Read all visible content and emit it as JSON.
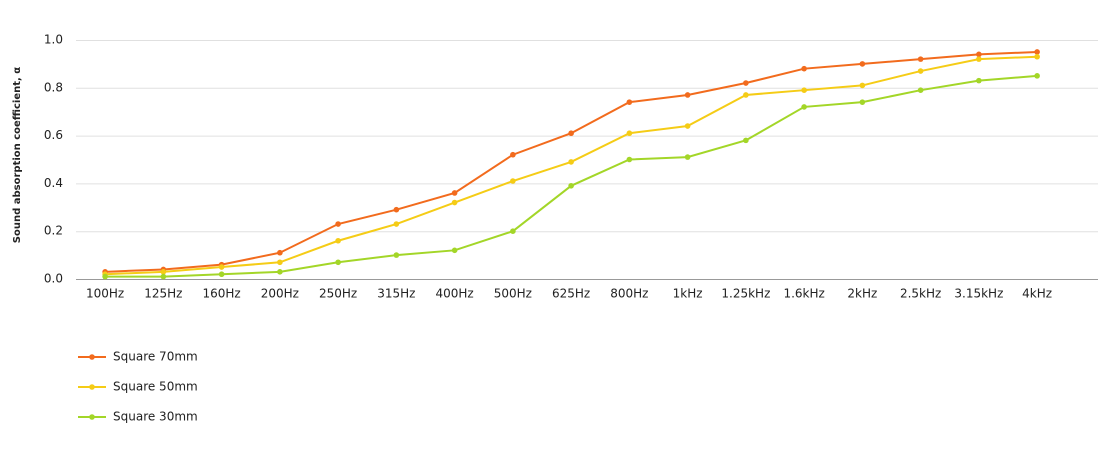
{
  "chart_data": {
    "type": "line",
    "y_label": "Sound absorption coefficient, α",
    "categories": [
      "100Hz",
      "125Hz",
      "160Hz",
      "200Hz",
      "250Hz",
      "315Hz",
      "400Hz",
      "500Hz",
      "625Hz",
      "800Hz",
      "1kHz",
      "1.25kHz",
      "1.6kHz",
      "2kHz",
      "2.5kHz",
      "3.15kHz",
      "4kHz"
    ],
    "series": [
      {
        "name": "Square 70mm",
        "color": "#f26b1d",
        "values": [
          0.03,
          0.04,
          0.06,
          0.11,
          0.23,
          0.29,
          0.36,
          0.52,
          0.61,
          0.74,
          0.77,
          0.82,
          0.88,
          0.9,
          0.92,
          0.94,
          0.95
        ]
      },
      {
        "name": "Square 50mm",
        "color": "#f5cc16",
        "values": [
          0.02,
          0.03,
          0.05,
          0.07,
          0.16,
          0.23,
          0.32,
          0.41,
          0.49,
          0.61,
          0.64,
          0.77,
          0.79,
          0.81,
          0.87,
          0.92,
          0.93
        ]
      },
      {
        "name": "Square 30mm",
        "color": "#a3d628",
        "values": [
          0.01,
          0.01,
          0.02,
          0.03,
          0.07,
          0.1,
          0.12,
          0.2,
          0.39,
          0.5,
          0.51,
          0.58,
          0.72,
          0.74,
          0.79,
          0.83,
          0.85
        ]
      }
    ],
    "ylim": [
      0,
      1
    ],
    "yticks": [
      {
        "value": 0,
        "label": "0.0"
      },
      0.2,
      0.4,
      0.6,
      0.8,
      {
        "value": 1,
        "label": "1.0"
      }
    ],
    "grid": true
  }
}
